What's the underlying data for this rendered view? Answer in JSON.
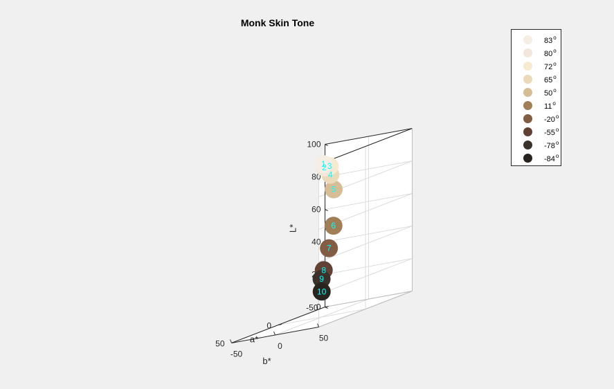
{
  "chart_data": {
    "type": "scatter3d",
    "title": "Monk Skin Tone",
    "xlabel": "a*",
    "ylabel": "b*",
    "zlabel": "L*",
    "xlim": [
      -50,
      50
    ],
    "ylim": [
      -50,
      50
    ],
    "zlim": [
      0,
      100
    ],
    "x_ticks": [
      "-50",
      "0",
      "50"
    ],
    "y_ticks": [
      "-50",
      "0",
      "50"
    ],
    "z_ticks": [
      "0",
      "20",
      "40",
      "60",
      "80",
      "100"
    ],
    "grid": true,
    "legend_position": "outside top-right",
    "degree_symbol": "o",
    "points": [
      {
        "label": "1",
        "legend": "83",
        "color": "#f6ede4",
        "a": 2,
        "b": 4,
        "L": 94
      },
      {
        "label": "2",
        "legend": "80",
        "color": "#f3e7db",
        "a": 3,
        "b": 6,
        "L": 92
      },
      {
        "label": "3",
        "legend": "72",
        "color": "#f7ead0",
        "a": 1,
        "b": 10,
        "L": 92
      },
      {
        "label": "4",
        "legend": "65",
        "color": "#eadaba",
        "a": 4,
        "b": 14,
        "L": 87
      },
      {
        "label": "5",
        "legend": "50",
        "color": "#d7bd96",
        "a": 7,
        "b": 21,
        "L": 78
      },
      {
        "label": "6",
        "legend": "11",
        "color": "#a07e56",
        "a": 10,
        "b": 24,
        "L": 56
      },
      {
        "label": "7",
        "legend": "-20",
        "color": "#825c43",
        "a": 13,
        "b": 22,
        "L": 43
      },
      {
        "label": "8",
        "legend": "-55",
        "color": "#604134",
        "a": 12,
        "b": 15,
        "L": 30
      },
      {
        "label": "9",
        "legend": "-78",
        "color": "#3a312a",
        "a": 5,
        "b": 5,
        "L": 24
      },
      {
        "label": "10",
        "legend": "-84",
        "color": "#292420",
        "a": 3,
        "b": 3,
        "L": 16
      }
    ]
  }
}
